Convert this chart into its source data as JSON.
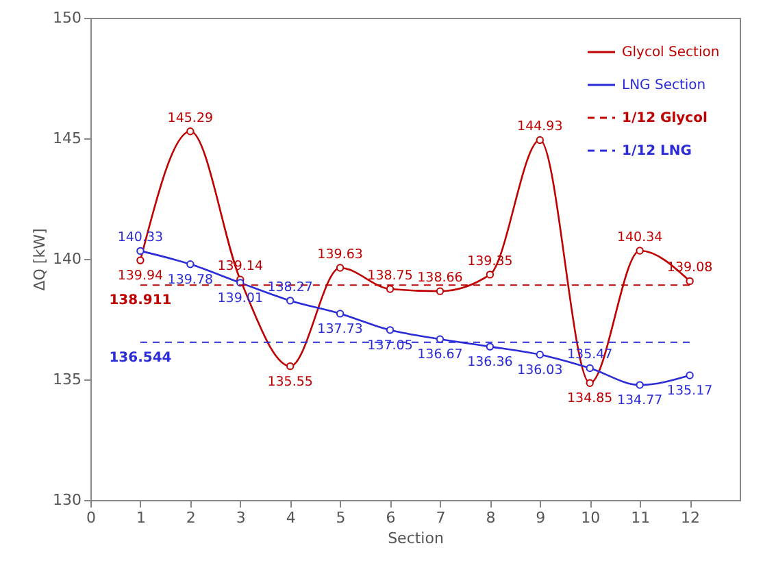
{
  "chart_data": {
    "type": "line",
    "xlabel": "Section",
    "ylabel": "ΔQ [kW]",
    "x": [
      1,
      2,
      3,
      4,
      5,
      6,
      7,
      8,
      9,
      10,
      11,
      12
    ],
    "series": [
      {
        "name": "Glycol Section",
        "color": "#c00000",
        "values": [
          139.94,
          145.29,
          139.14,
          135.55,
          139.63,
          138.75,
          138.66,
          139.35,
          144.93,
          134.85,
          140.34,
          139.08
        ]
      },
      {
        "name": "LNG Section",
        "color": "#2b2bd9",
        "values": [
          140.33,
          139.78,
          139.01,
          138.27,
          137.73,
          137.05,
          136.67,
          136.36,
          136.03,
          135.47,
          134.77,
          135.17
        ]
      }
    ],
    "ref_lines": [
      {
        "axis": "y",
        "value": 138.911,
        "label": "1/12 Glycol",
        "color": "#c00000",
        "line_style": "dashed"
      },
      {
        "axis": "y",
        "value": 136.544,
        "label": "1/12 LNG",
        "color": "#2b2bd9",
        "line_style": "dashed"
      }
    ],
    "annotations": [
      {
        "text": "138.911",
        "x": 1,
        "y": 138.911
      },
      {
        "text": "136.544",
        "x": 1,
        "y": 136.544
      }
    ],
    "xlim": [
      0,
      13
    ],
    "xticks": [
      0,
      1,
      2,
      3,
      4,
      5,
      6,
      7,
      8,
      9,
      10,
      11,
      12
    ],
    "ylim": [
      130,
      150
    ],
    "yticks": [
      130,
      135,
      140,
      145,
      150
    ],
    "data_labels": true,
    "marker": "circle",
    "line_style": "solid",
    "grid": false,
    "legend": "top right"
  }
}
